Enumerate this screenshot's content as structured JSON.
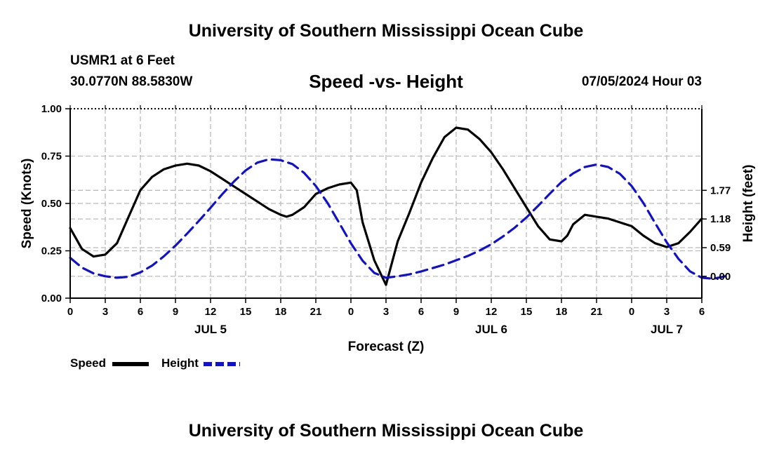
{
  "header": {
    "title": "University of Southern Mississippi Ocean Cube",
    "station": "USMR1 at 6 Feet",
    "coords": "30.0770N  88.5830W",
    "chart_title": "Speed -vs- Height",
    "timestamp": "07/05/2024 Hour 03"
  },
  "footer": {
    "title": "University of Southern Mississippi Ocean Cube"
  },
  "colors": {
    "speed": "#000000",
    "height": "#1111cc",
    "grid": "#bbbbbb"
  },
  "chart_data": {
    "type": "line",
    "title": "Speed -vs- Height",
    "xlabel": "Forecast (Z)",
    "ylabel": "Speed (Knots)",
    "y2label": "Height (feet)",
    "xlim": [
      0,
      54
    ],
    "ylim": [
      0,
      1.0
    ],
    "y2lim": [
      -0.45,
      3.45
    ],
    "x_ticks": [
      0,
      3,
      6,
      9,
      12,
      15,
      18,
      21,
      24,
      27,
      30,
      33,
      36,
      39,
      42,
      45,
      48,
      51,
      54
    ],
    "x_tick_labels": [
      "0",
      "3",
      "6",
      "9",
      "12",
      "15",
      "18",
      "21",
      "0",
      "3",
      "6",
      "9",
      "12",
      "15",
      "18",
      "21",
      "0",
      "3",
      "6"
    ],
    "date_labels": [
      {
        "x": 12,
        "label": "JUL 5"
      },
      {
        "x": 36,
        "label": "JUL 6"
      },
      {
        "x": 51,
        "label": "JUL 7"
      }
    ],
    "y_ticks": [
      0,
      0.25,
      0.5,
      0.75,
      1.0
    ],
    "y_tick_labels": [
      "0.00",
      "0.25",
      "0.50",
      "0.75",
      "1.00"
    ],
    "y2_ticks": [
      0,
      0.59,
      1.18,
      1.77
    ],
    "y2_tick_labels": [
      "0.00",
      "0.59",
      "1.18",
      "1.77"
    ],
    "grid": true,
    "legend": "bottom-left",
    "series": [
      {
        "name": "Speed",
        "axis": "left",
        "style": "solid",
        "x": [
          0,
          1,
          2,
          3,
          4,
          5,
          6,
          7,
          8,
          9,
          10,
          11,
          12,
          13,
          14,
          15,
          16,
          17,
          18,
          18.5,
          19,
          20,
          21,
          22,
          23,
          24,
          24.5,
          25,
          26,
          27,
          28,
          29,
          30,
          31,
          32,
          33,
          34,
          35,
          36,
          37,
          38,
          39,
          40,
          41,
          42,
          42.5,
          43,
          44,
          45,
          46,
          47,
          48,
          49,
          50,
          51,
          52,
          53,
          54
        ],
        "values": [
          0.37,
          0.26,
          0.22,
          0.23,
          0.29,
          0.43,
          0.57,
          0.64,
          0.68,
          0.7,
          0.71,
          0.7,
          0.67,
          0.63,
          0.59,
          0.55,
          0.51,
          0.47,
          0.44,
          0.43,
          0.44,
          0.48,
          0.55,
          0.58,
          0.6,
          0.61,
          0.57,
          0.4,
          0.2,
          0.07,
          0.3,
          0.45,
          0.61,
          0.74,
          0.85,
          0.9,
          0.89,
          0.84,
          0.77,
          0.68,
          0.58,
          0.48,
          0.38,
          0.31,
          0.3,
          0.33,
          0.39,
          0.44,
          0.43,
          0.42,
          0.4,
          0.38,
          0.33,
          0.29,
          0.27,
          0.29,
          0.35,
          0.42
        ]
      },
      {
        "name": "Height",
        "axis": "right",
        "values": [
          0.38,
          0.18,
          0.06,
          0.0,
          -0.03,
          -0.01,
          0.08,
          0.22,
          0.41,
          0.63,
          0.88,
          1.14,
          1.41,
          1.69,
          1.95,
          2.18,
          2.34,
          2.41,
          2.39,
          2.31,
          2.13,
          1.86,
          1.51,
          1.1,
          0.68,
          0.32,
          0.07,
          -0.03,
          0.0,
          0.04,
          0.1,
          0.17,
          0.24,
          0.33,
          0.42,
          0.53,
          0.66,
          0.82,
          1.0,
          1.21,
          1.45,
          1.7,
          1.94,
          2.12,
          2.25,
          2.3,
          2.25,
          2.11,
          1.86,
          1.51,
          1.1,
          0.7,
          0.36,
          0.1,
          -0.03,
          -0.05,
          0.0
        ]
      }
    ]
  },
  "legend": {
    "speed_label": "Speed",
    "height_label": "Height"
  }
}
